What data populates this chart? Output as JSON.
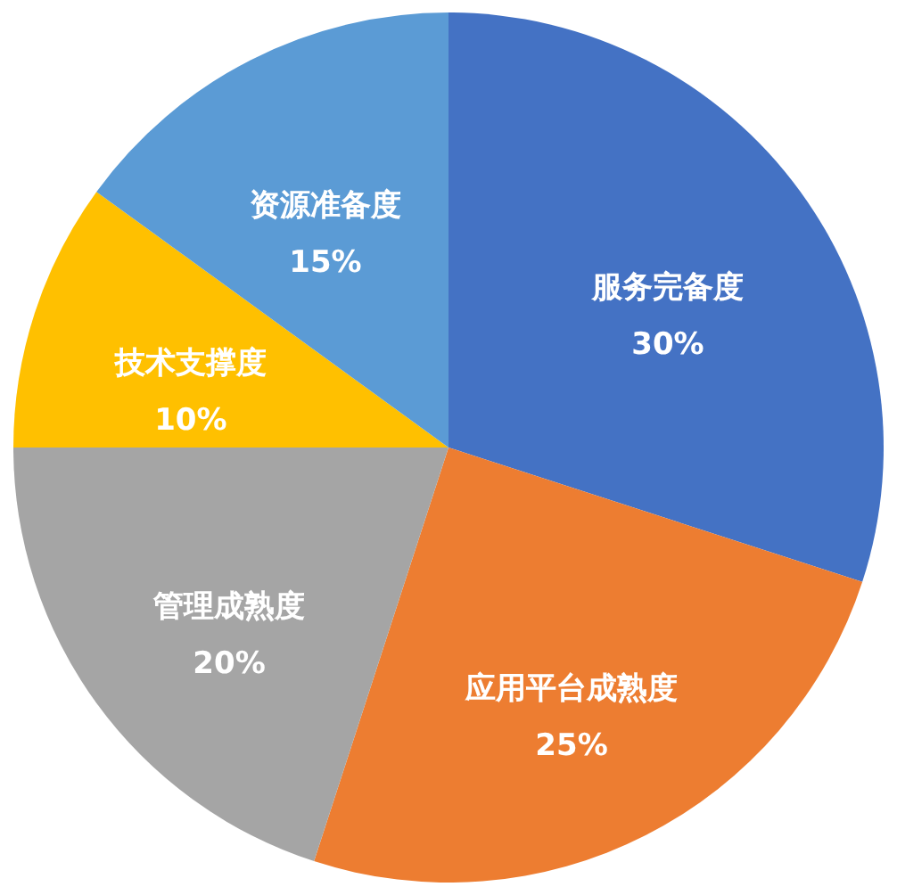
{
  "chart_data": {
    "type": "pie",
    "categories": [
      "服务完备度",
      "应用平台成熟度",
      "管理成熟度",
      "技术支撑度",
      "资源准备度"
    ],
    "values": [
      30,
      25,
      20,
      10,
      15
    ],
    "colors": [
      "#4472c4",
      "#ed7d31",
      "#a5a5a5",
      "#ffc000",
      "#5b9bd5"
    ],
    "value_labels": [
      "30%",
      "25%",
      "20%",
      "10%",
      "15%"
    ]
  }
}
